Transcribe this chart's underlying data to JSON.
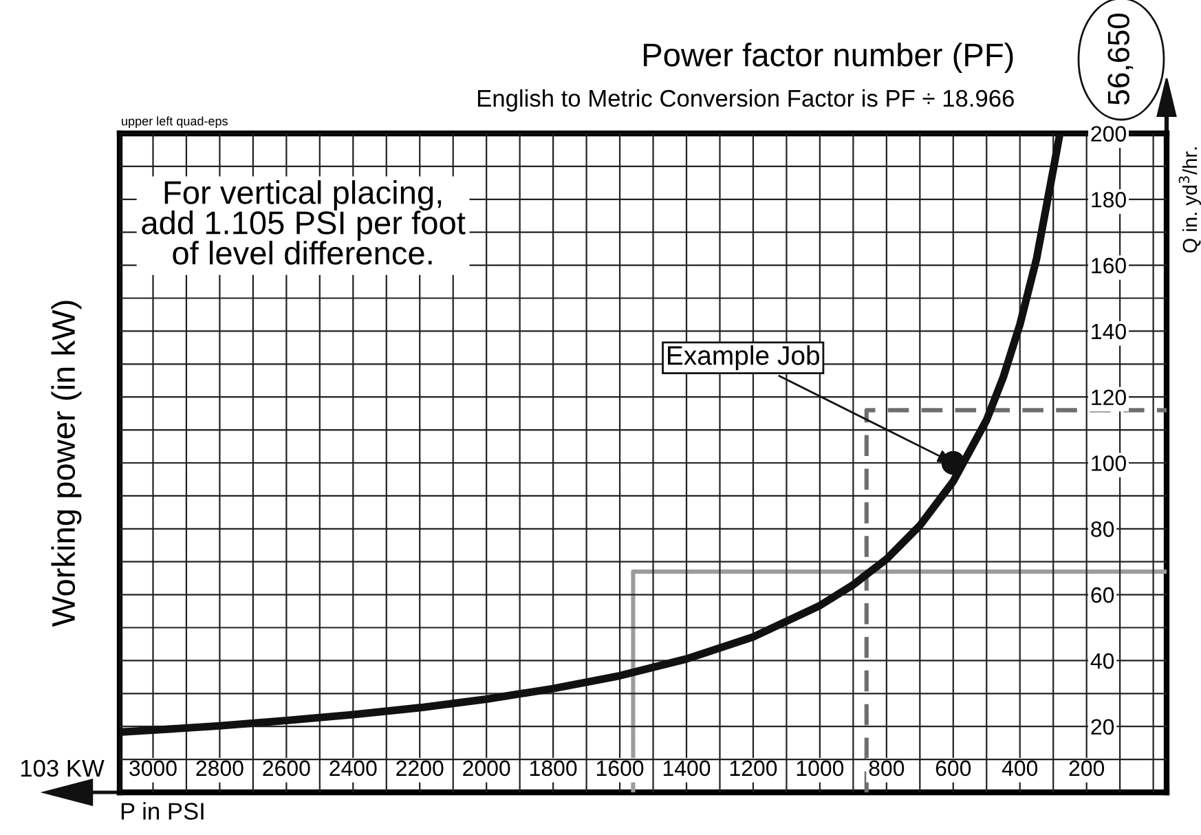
{
  "chart_data": {
    "type": "line",
    "title": "Power factor number (PF)",
    "subtitle": "English to Metric Conversion Factor is PF ÷ 18.966",
    "xlabel": "P in PSI",
    "ylabel": "Working power (in kW)",
    "y2label": "Q in. yd$^{3}$/hr.",
    "annotations": [
      "For vertical placing,\nadd 1.105 PSI per foot\nof level difference.",
      {
        "text": "Example Job",
        "x": 600,
        "y": 100
      },
      "56,650",
      "upper left quad-eps",
      "103 KW"
    ],
    "series": [
      {
        "color": "#111111",
        "marker": "none",
        "line_style": "solid",
        "x": [
          3100,
          3000,
          2800,
          2600,
          2400,
          2200,
          2000,
          1800,
          1600,
          1400,
          1200,
          1000,
          900,
          800,
          700,
          600,
          500,
          450,
          400,
          350,
          300,
          280
        ],
        "values": [
          18.3,
          18.9,
          20.2,
          21.8,
          23.6,
          25.7,
          28.3,
          31.5,
          35.4,
          40.5,
          47.2,
          56.7,
          63,
          70.8,
          81,
          94.4,
          113,
          126,
          142,
          162,
          189,
          200
        ]
      },
      {
        "type": "scatter",
        "color": "#111111",
        "marker": "circle",
        "x": [
          600
        ],
        "values": [
          100
        ]
      },
      {
        "color": "#6e6e6e",
        "marker": "none",
        "line_style": "dashed",
        "x": [
          860,
          860,
          -40
        ],
        "values": [
          0,
          116,
          116
        ]
      },
      {
        "color": "#9c9c9c",
        "marker": "none",
        "line_style": "solid",
        "x": [
          1560,
          1560,
          -40
        ],
        "values": [
          0,
          67,
          67
        ]
      }
    ],
    "xlim": [
      3100,
      -40
    ],
    "ylim": [
      0,
      200
    ],
    "xticks": [
      {
        "value": 3100,
        "label": null
      },
      3000,
      {
        "value": 2900,
        "label": null
      },
      2800,
      {
        "value": 2700,
        "label": null
      },
      2600,
      {
        "value": 2500,
        "label": null
      },
      2400,
      {
        "value": 2300,
        "label": null
      },
      2200,
      {
        "value": 2100,
        "label": null
      },
      2000,
      {
        "value": 1900,
        "label": null
      },
      1800,
      {
        "value": 1700,
        "label": null
      },
      1600,
      {
        "value": 1500,
        "label": null
      },
      1400,
      {
        "value": 1300,
        "label": null
      },
      1200,
      {
        "value": 1100,
        "label": null
      },
      1000,
      {
        "value": 900,
        "label": null
      },
      800,
      {
        "value": 700,
        "label": null
      },
      600,
      {
        "value": 500,
        "label": null
      },
      400,
      {
        "value": 300,
        "label": null
      },
      200,
      {
        "value": 100,
        "label": null
      },
      {
        "value": 0,
        "label": null
      }
    ],
    "yticks": [
      {
        "value": 10,
        "label": null
      },
      20,
      {
        "value": 30,
        "label": null
      },
      40,
      {
        "value": 50,
        "label": null
      },
      60,
      {
        "value": 70,
        "label": null
      },
      80,
      {
        "value": 90,
        "label": null
      },
      100,
      {
        "value": 110,
        "label": null
      },
      120,
      {
        "value": 130,
        "label": null
      },
      140,
      {
        "value": 150,
        "label": null
      },
      160,
      {
        "value": 170,
        "label": null
      },
      180,
      {
        "value": 190,
        "label": null
      },
      200
    ],
    "grid": true
  }
}
